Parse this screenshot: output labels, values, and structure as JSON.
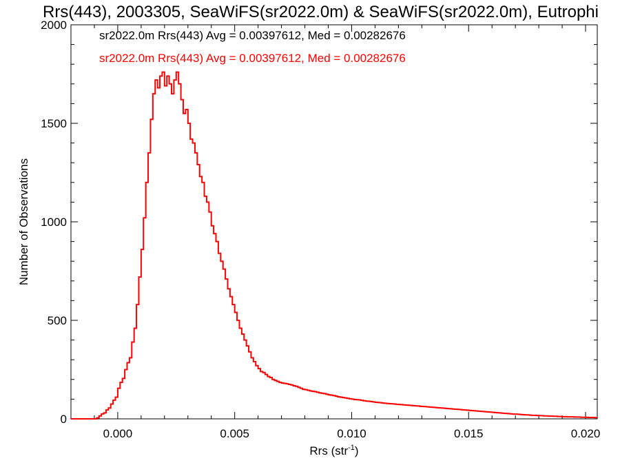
{
  "chart_data": {
    "type": "line",
    "title": "Rrs(443), 2003305, SeaWiFS(sr2022.0m) & SeaWiFS(sr2022.0m), Eutrophi",
    "xlabel": "Rrs (str",
    "xlabel_sup": "-1",
    "xlabel_close": ")",
    "ylabel": "Number of Observations",
    "xlim": [
      -0.002,
      0.0205
    ],
    "ylim": [
      0,
      2000
    ],
    "xticks": [
      0.0,
      0.005,
      0.01,
      0.015,
      0.02
    ],
    "xtick_labels": [
      "0.000",
      "0.005",
      "0.010",
      "0.015",
      "0.020"
    ],
    "yticks": [
      0,
      500,
      1000,
      1500,
      2000
    ],
    "ytick_labels": [
      "0",
      "500",
      "1000",
      "1500",
      "2000"
    ],
    "grid": false,
    "annotations": [
      {
        "text": "sr2022.0m Rrs(443) Avg = 0.00397612, Med = 0.00282676",
        "color": "#000000"
      },
      {
        "text": "sr2022.0m Rrs(443) Avg = 0.00397612, Med = 0.00282676",
        "color": "#ff0000"
      }
    ],
    "bin_width": 0.0001,
    "series": [
      {
        "color": "#ff0000",
        "style": "step",
        "x_start": -0.001,
        "values": [
          0,
          5,
          15,
          25,
          30,
          45,
          55,
          75,
          95,
          110,
          155,
          185,
          205,
          250,
          285,
          310,
          390,
          460,
          580,
          720,
          860,
          1020,
          1200,
          1350,
          1520,
          1650,
          1720,
          1680,
          1740,
          1760,
          1690,
          1740,
          1700,
          1650,
          1720,
          1760,
          1700,
          1620,
          1550,
          1570,
          1500,
          1420,
          1400,
          1350,
          1290,
          1230,
          1200,
          1130,
          1100,
          1050,
          980,
          940,
          900,
          840,
          800,
          760,
          710,
          660,
          620,
          580,
          540,
          500,
          460,
          430,
          400,
          370,
          340,
          310,
          290,
          270,
          255,
          240,
          235,
          225,
          215,
          210,
          200,
          195,
          190,
          185,
          182,
          180,
          178,
          175,
          172,
          168,
          165,
          160,
          155,
          150,
          148,
          145,
          142,
          140,
          138,
          135,
          132,
          130,
          128,
          125,
          122,
          120,
          118,
          115,
          112,
          110,
          108,
          106,
          104,
          102,
          100,
          98,
          97,
          96,
          94,
          92,
          90,
          89,
          88,
          86,
          84,
          83,
          82,
          80,
          79,
          78,
          77,
          76,
          75,
          74,
          73,
          72,
          71,
          70,
          69,
          68,
          67,
          66,
          65,
          64,
          63,
          62,
          61,
          60,
          59,
          58,
          57,
          56,
          55,
          54,
          53,
          52,
          51,
          50,
          49,
          48,
          47,
          46,
          45,
          44,
          43,
          42,
          41,
          40,
          39,
          38,
          37,
          36,
          35,
          34,
          33,
          32,
          31,
          30,
          29,
          28,
          27,
          26,
          25,
          24,
          24,
          23,
          22,
          21,
          20,
          20,
          19,
          18,
          18,
          17,
          16,
          16,
          15,
          15,
          14,
          14,
          13,
          13,
          12,
          12,
          11,
          11,
          10,
          10,
          10,
          9,
          9,
          9,
          8,
          8,
          8,
          7,
          7,
          7,
          6,
          6,
          6,
          6,
          5,
          5,
          5,
          5,
          5,
          4,
          4,
          4,
          4,
          4,
          3,
          3,
          3,
          3,
          3,
          3
        ]
      }
    ]
  }
}
